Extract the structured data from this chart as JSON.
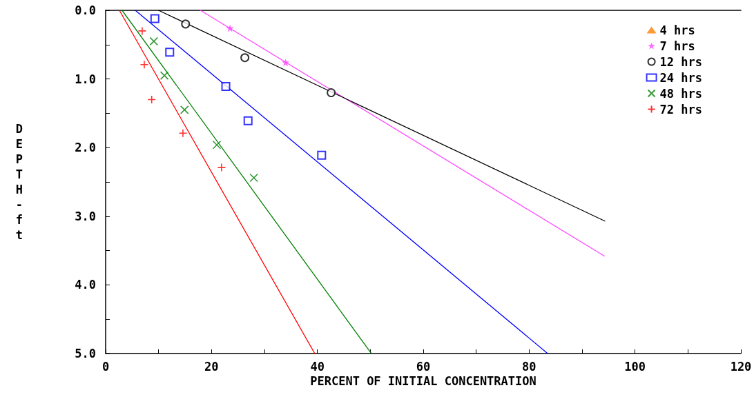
{
  "chart_data": {
    "type": "scatter",
    "xlabel": "PERCENT OF INITIAL CONCENTRATION",
    "ylabel": "DEPTH-ft",
    "xlim": [
      0,
      120
    ],
    "xticks": [
      0,
      {
        "value": 10,
        "label": null
      },
      20,
      {
        "value": 30,
        "label": null
      },
      40,
      {
        "value": 50,
        "label": null
      },
      60,
      {
        "value": 70,
        "label": null
      },
      80,
      {
        "value": 90,
        "label": null
      },
      100,
      {
        "value": 110,
        "label": null
      },
      120
    ],
    "ylim": [
      5,
      0
    ],
    "yticks": [
      {
        "value": 0,
        "label": "0.0"
      },
      {
        "value": 0.5,
        "label": null
      },
      {
        "value": 1,
        "label": "1.0"
      },
      {
        "value": 1.5,
        "label": null
      },
      {
        "value": 2,
        "label": "2.0"
      },
      {
        "value": 2.5,
        "label": null
      },
      {
        "value": 3,
        "label": "3.0"
      },
      {
        "value": 3.5,
        "label": null
      },
      {
        "value": 4,
        "label": "4.0"
      },
      {
        "value": 4.5,
        "label": null
      },
      {
        "value": 5,
        "label": "5.0"
      }
    ],
    "grid": false,
    "legend": "top right",
    "series": [
      {
        "name": "4 hrs",
        "color": "#ff8000",
        "marker": "triangle"
      },
      {
        "name": "7 hrs",
        "color": "#ff44ff",
        "marker": "star",
        "x": [
          23.5,
          34.0
        ],
        "values": [
          0.26,
          0.76
        ]
      },
      {
        "name": "12 hrs",
        "color": "#000000",
        "marker": "circle",
        "x": [
          15.1,
          26.3,
          42.6
        ],
        "values": [
          0.2,
          0.69,
          1.2
        ]
      },
      {
        "name": "24 hrs",
        "color": "#0000ff",
        "marker": "square",
        "x": [
          9.3,
          12.1,
          22.7,
          26.9,
          40.8
        ],
        "values": [
          0.12,
          0.61,
          1.11,
          1.61,
          2.11
        ]
      },
      {
        "name": "48 hrs",
        "color": "#008000",
        "marker": "cross",
        "x": [
          9.1,
          11.1,
          14.9,
          21.0,
          28.0
        ],
        "values": [
          0.45,
          0.95,
          1.45,
          1.96,
          2.44
        ]
      },
      {
        "name": "72 hrs",
        "color": "#ff0000",
        "marker": "plus",
        "x": [
          6.9,
          7.3,
          8.7,
          14.6,
          21.9
        ],
        "values": [
          0.3,
          0.79,
          1.3,
          1.79,
          2.29
        ]
      },
      {
        "type": "line",
        "color": "#ff44ff",
        "x": [
          17.9,
          94.2
        ],
        "values": [
          0,
          3.58
        ]
      },
      {
        "type": "line",
        "color": "#000000",
        "x": [
          10,
          94.3
        ],
        "values": [
          0,
          3.07
        ]
      },
      {
        "type": "line",
        "color": "#0000ff",
        "x": [
          5.6,
          83.5
        ],
        "values": [
          0,
          5
        ]
      },
      {
        "type": "line",
        "color": "#008000",
        "x": [
          3.1,
          50.2
        ],
        "values": [
          0,
          5
        ]
      },
      {
        "type": "line",
        "color": "#ff0000",
        "x": [
          2.6,
          39.5
        ],
        "values": [
          0,
          5
        ]
      }
    ]
  }
}
